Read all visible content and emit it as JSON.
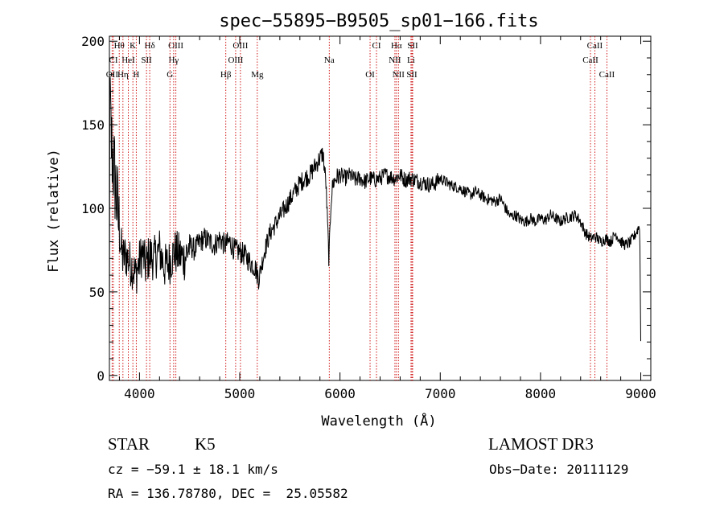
{
  "chart_data": {
    "type": "line",
    "title": "spec−55895−B9505_sp01−166.fits",
    "xlabel": "Wavelength (Å)",
    "ylabel": "Flux (relative)",
    "xlim": [
      3700,
      9100
    ],
    "ylim": [
      -3,
      203
    ],
    "x_ticks": [
      4000,
      5000,
      6000,
      7000,
      8000,
      9000
    ],
    "y_ticks": [
      0,
      50,
      100,
      150,
      200
    ],
    "grid": false,
    "line_color": "#000000",
    "marker_color": "#cc0000",
    "series": [
      {
        "x": [
          3700,
          3720,
          3740,
          3760,
          3780,
          3800,
          3830,
          3860,
          3900,
          3930,
          3960,
          3990,
          4030,
          4060,
          4100,
          4150,
          4200,
          4250,
          4300,
          4350,
          4400,
          4450,
          4500,
          4550,
          4600,
          4650,
          4700,
          4750,
          4800,
          4850,
          4900,
          4950,
          5000,
          5050,
          5100,
          5150,
          5190,
          5250,
          5300,
          5350,
          5400,
          5450,
          5500,
          5550,
          5600,
          5650,
          5700,
          5750,
          5800,
          5830,
          5860,
          5890,
          5910,
          5930,
          5960,
          6000,
          6050,
          6100,
          6150,
          6200,
          6250,
          6300,
          6350,
          6400,
          6450,
          6500,
          6550,
          6600,
          6650,
          6700,
          6750,
          6800,
          6850,
          6900,
          6950,
          7000,
          7050,
          7100,
          7150,
          7200,
          7250,
          7300,
          7350,
          7400,
          7450,
          7500,
          7550,
          7600,
          7650,
          7700,
          7750,
          7800,
          7850,
          7900,
          7950,
          8000,
          8050,
          8100,
          8150,
          8200,
          8250,
          8300,
          8350,
          8400,
          8450,
          8500,
          8550,
          8600,
          8650,
          8700,
          8750,
          8800,
          8850,
          8900,
          8950,
          8990,
          9000
        ],
        "y": [
          160,
          140,
          125,
          115,
          100,
          85,
          70,
          72,
          68,
          65,
          60,
          66,
          74,
          65,
          72,
          70,
          75,
          65,
          68,
          74,
          72,
          70,
          78,
          75,
          80,
          82,
          80,
          78,
          82,
          78,
          80,
          75,
          74,
          72,
          68,
          65,
          58,
          75,
          85,
          90,
          95,
          100,
          105,
          110,
          115,
          118,
          120,
          125,
          130,
          133,
          115,
          68,
          105,
          115,
          118,
          120,
          118,
          120,
          117,
          118,
          116,
          118,
          117,
          118,
          120,
          119,
          118,
          120,
          117,
          118,
          117,
          116,
          115,
          114,
          115,
          118,
          116,
          114,
          113,
          112,
          110,
          108,
          110,
          108,
          106,
          105,
          104,
          106,
          100,
          95,
          96,
          93,
          92,
          94,
          92,
          94,
          93,
          96,
          94,
          92,
          94,
          95,
          96,
          92,
          85,
          82,
          83,
          80,
          82,
          80,
          85,
          80,
          78,
          80,
          85,
          90,
          20
        ]
      }
    ],
    "line_markers": [
      {
        "name": "Hθ",
        "x": 3798,
        "row": 0
      },
      {
        "name": "K",
        "x": 3934,
        "row": 0
      },
      {
        "name": "Hδ",
        "x": 4102,
        "row": 0
      },
      {
        "name": "OIII",
        "x": 4363,
        "row": 0
      },
      {
        "name": "OIII",
        "x": 5007,
        "row": 0
      },
      {
        "name": "CI",
        "x": 6364,
        "row": 0
      },
      {
        "name": "Hα",
        "x": 6563,
        "row": 0
      },
      {
        "name": "SII",
        "x": 6725,
        "row": 0
      },
      {
        "name": "CaII",
        "x": 8542,
        "row": 0
      },
      {
        "name": "CI",
        "x": 3740,
        "row": 1
      },
      {
        "name": "HeI",
        "x": 3889,
        "row": 1
      },
      {
        "name": "SII",
        "x": 4070,
        "row": 1
      },
      {
        "name": "Hγ",
        "x": 4341,
        "row": 1
      },
      {
        "name": "OIII",
        "x": 4959,
        "row": 1
      },
      {
        "name": "Na",
        "x": 5893,
        "row": 1
      },
      {
        "name": "NII",
        "x": 6548,
        "row": 1
      },
      {
        "name": "Li",
        "x": 6708,
        "row": 1
      },
      {
        "name": "CaII",
        "x": 8498,
        "row": 1
      },
      {
        "name": "OII",
        "x": 3727,
        "row": 2
      },
      {
        "name": "Hη",
        "x": 3835,
        "row": 2
      },
      {
        "name": "H",
        "x": 3968,
        "row": 2
      },
      {
        "name": "G",
        "x": 4304,
        "row": 2
      },
      {
        "name": "Hβ",
        "x": 4861,
        "row": 2
      },
      {
        "name": "Mg",
        "x": 5175,
        "row": 2
      },
      {
        "name": "OI",
        "x": 6300,
        "row": 2
      },
      {
        "name": "NII",
        "x": 6583,
        "row": 2
      },
      {
        "name": "SII",
        "x": 6717,
        "row": 2
      },
      {
        "name": "CaII",
        "x": 8662,
        "row": 2
      }
    ]
  },
  "info": {
    "class": "STAR",
    "subclass": "K5",
    "survey": "LAMOST DR3",
    "cz": "cz = −59.1 ± 18.1 km/s",
    "obs_date": "Obs−Date: 20111129",
    "radec": "RA = 136.78780, DEC =  25.05582"
  }
}
